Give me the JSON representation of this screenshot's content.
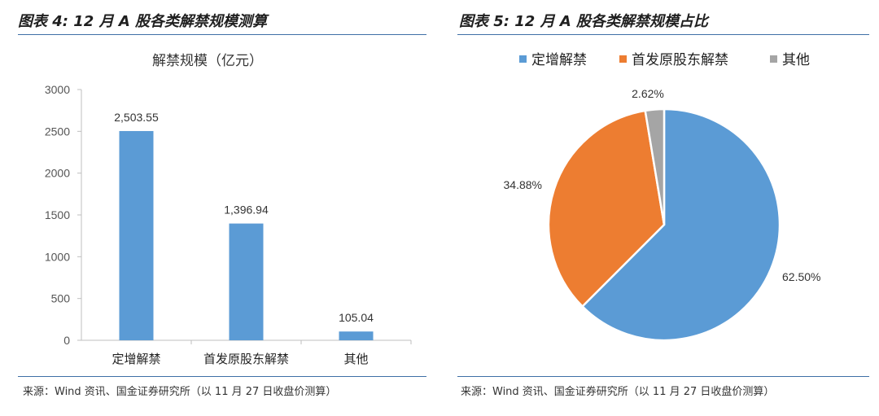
{
  "left_panel": {
    "figure_title": "图表 4:  12 月 A 股各类解禁规模测算",
    "source": "来源：Wind 资讯、国金证券研究所（以 11 月 27 日收盘价测算）"
  },
  "right_panel": {
    "figure_title": "图表 5:  12 月 A 股各类解禁规模占比",
    "source": "来源：Wind 资讯、国金证券研究所（以 11 月 27 日收盘价测算）"
  },
  "colors": {
    "bar": "#5b9bd5",
    "pie": [
      "#5b9bd5",
      "#ed7d31",
      "#a5a5a5"
    ],
    "rule": "#3f6fa6"
  },
  "chart_data": [
    {
      "type": "bar",
      "title": "解禁规模（亿元）",
      "categories": [
        "定增解禁",
        "首发原股东解禁",
        "其他"
      ],
      "values": [
        2503.55,
        1396.94,
        105.04
      ],
      "data_labels": [
        "2,503.55",
        "1,396.94",
        "105.04"
      ],
      "ylim": [
        0,
        3000
      ],
      "yticks": [
        0,
        500,
        1000,
        1500,
        2000,
        2500,
        3000
      ],
      "grid": false
    },
    {
      "type": "pie",
      "categories": [
        "定增解禁",
        "首发原股东解禁",
        "其他"
      ],
      "values": [
        62.5,
        34.88,
        2.62
      ],
      "data_labels": [
        "62.50%",
        "34.88%",
        "2.62%"
      ],
      "legend": "top"
    }
  ]
}
